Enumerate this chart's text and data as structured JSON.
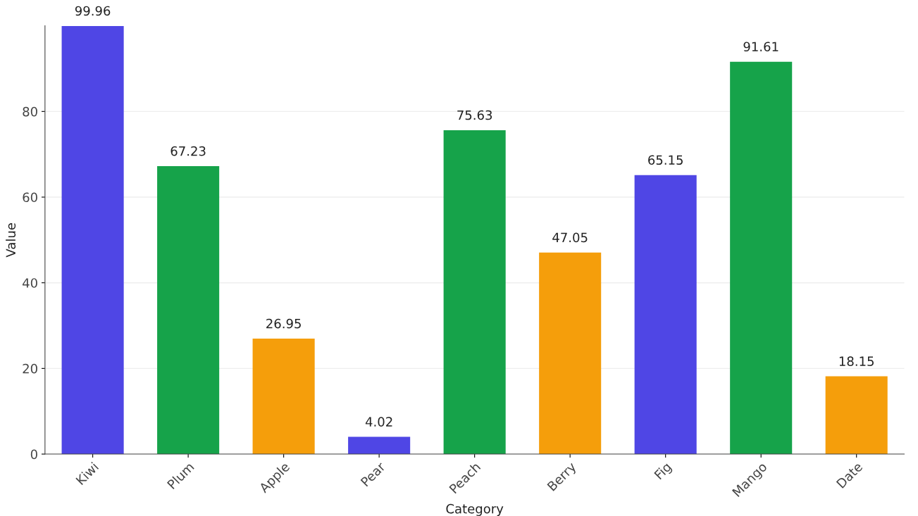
{
  "chart_data": {
    "type": "bar",
    "xlabel": "Category",
    "ylabel": "Value",
    "categories": [
      "Kiwi",
      "Plum",
      "Apple",
      "Pear",
      "Peach",
      "Berry",
      "Fig",
      "Mango",
      "Date"
    ],
    "values": [
      99.96,
      67.23,
      26.95,
      4.02,
      75.63,
      47.05,
      65.15,
      91.61,
      18.15
    ],
    "colors": [
      "#4f46e5",
      "#16a34a",
      "#f59e0b",
      "#4f46e5",
      "#16a34a",
      "#f59e0b",
      "#4f46e5",
      "#16a34a",
      "#f59e0b"
    ],
    "ylim": [
      0,
      100
    ],
    "yticks": [
      0,
      20,
      40,
      60,
      80
    ],
    "grid": "y",
    "data_labels": true
  }
}
